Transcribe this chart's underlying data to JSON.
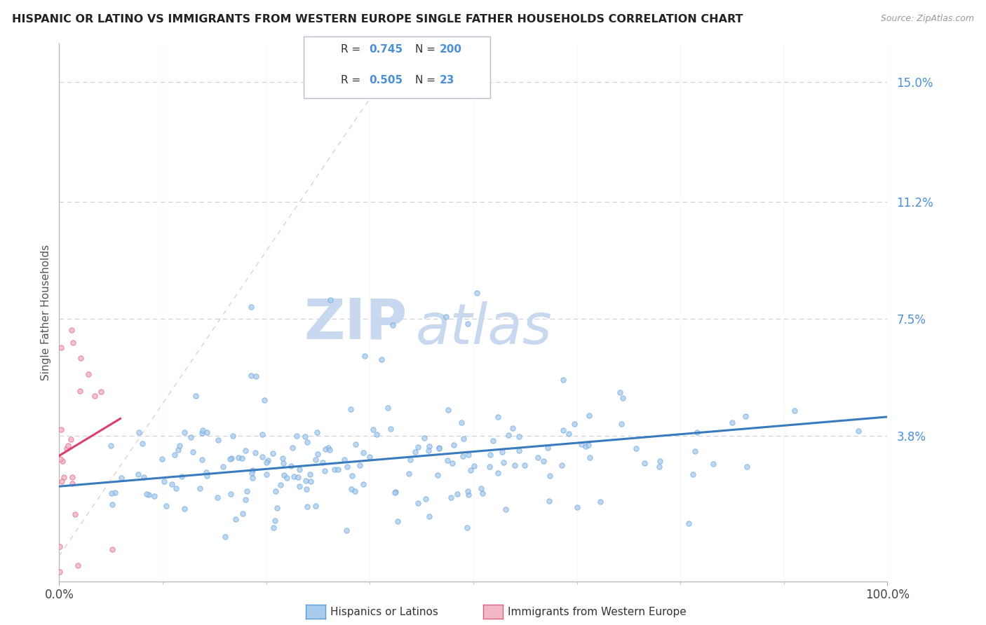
{
  "title": "HISPANIC OR LATINO VS IMMIGRANTS FROM WESTERN EUROPE SINGLE FATHER HOUSEHOLDS CORRELATION CHART",
  "source": "Source: ZipAtlas.com",
  "ylabel": "Single Father Households",
  "watermark_zip": "ZIP",
  "watermark_atlas": "atlas",
  "xmin": 0.0,
  "xmax": 1.0,
  "ymin": -0.008,
  "ymax": 0.162,
  "ytick_vals": [
    0.038,
    0.075,
    0.112,
    0.15
  ],
  "ytick_labels": [
    "3.8%",
    "7.5%",
    "11.2%",
    "15.0%"
  ],
  "xtick_vals": [
    0.0,
    1.0
  ],
  "xtick_labels": [
    "0.0%",
    "100.0%"
  ],
  "legend_r1": "0.745",
  "legend_n1": "200",
  "legend_r2": "0.505",
  "legend_n2": "23",
  "color_blue_fill": "#A8CCEE",
  "color_blue_edge": "#5B9BD5",
  "color_blue_line": "#3A7ABF",
  "color_pink_fill": "#F2B8C6",
  "color_pink_edge": "#E06080",
  "color_pink_line": "#D94070",
  "color_diag": "#E0C0C8",
  "color_grid": "#C8C8D8",
  "color_title": "#222222",
  "color_source": "#999999",
  "color_label_blue": "#4A90D9",
  "color_watermark_zip": "#C8D8EE",
  "color_watermark_atlas": "#C8D8EE",
  "color_legend_text": "#333333",
  "background": "#FFFFFF",
  "seed": 42,
  "n_blue": 200,
  "n_pink": 23
}
